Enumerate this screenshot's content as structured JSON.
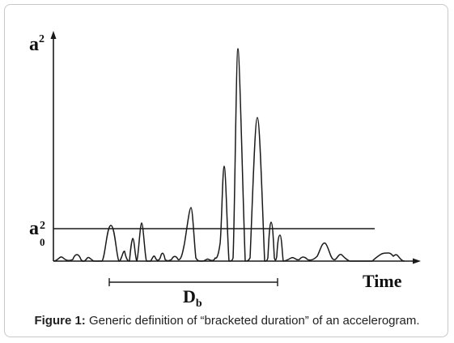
{
  "diagram": {
    "y_axis_label": {
      "base": "a",
      "sup": "2"
    },
    "threshold_label": {
      "base": "a",
      "sup": "2",
      "sub": "0"
    },
    "x_axis_label": "Time",
    "duration_label": {
      "base": "D",
      "sub": "b"
    }
  },
  "caption": {
    "prefix": "Figure 1:",
    "text": " Generic definition of “bracketed duration” of an accelerogram."
  },
  "colors": {
    "ink": "#1a1a1a",
    "frame": "#c8c8c8"
  }
}
